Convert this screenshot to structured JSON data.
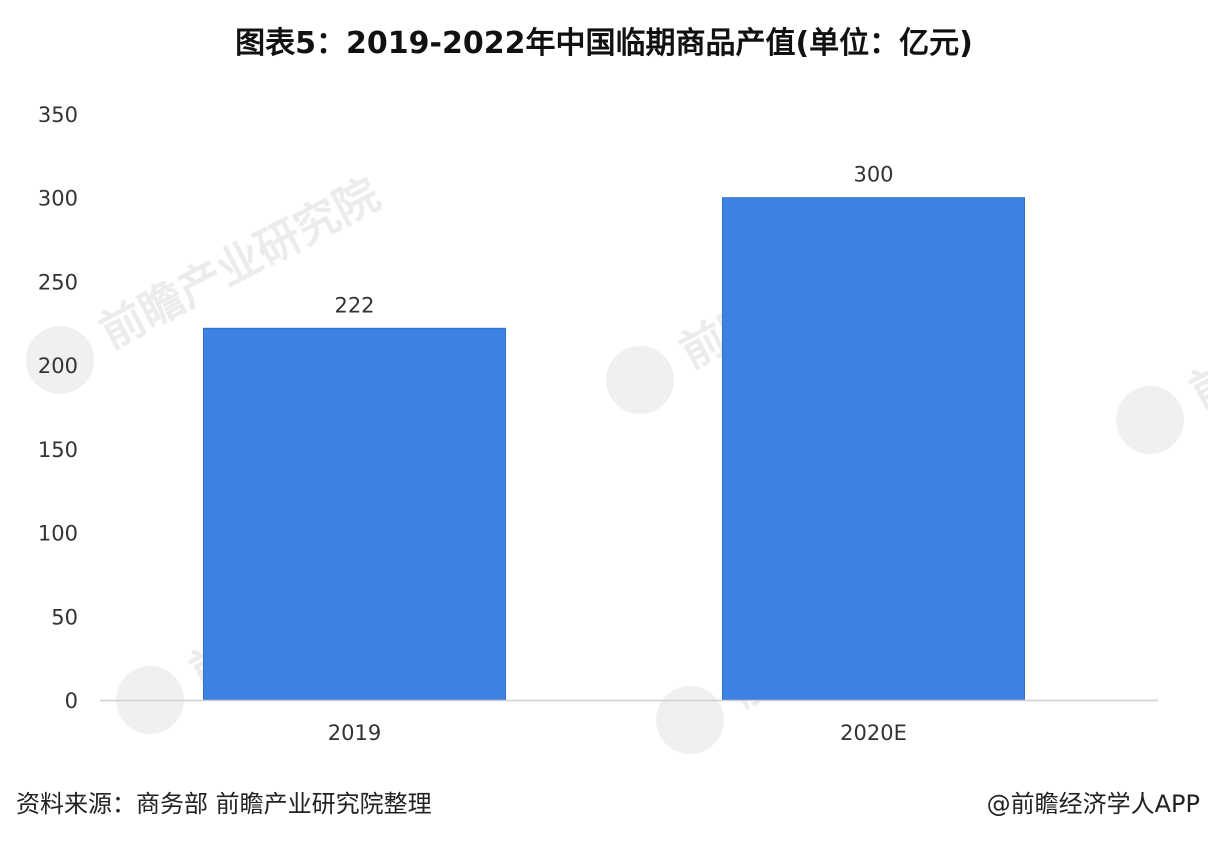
{
  "title": "图表5：2019-2022年中国临期商品产值(单位：亿元)",
  "source": "资料来源：商务部 前瞻产业研究院整理",
  "credit": "@前瞻经济学人APP",
  "watermark": "前瞻产业研究院",
  "colors": {
    "bar": "#3d82e0",
    "axis": "#cfcfcf",
    "text": "#333333"
  },
  "chart_data": {
    "type": "bar",
    "categories": [
      "2019",
      "2020E"
    ],
    "values": [
      222,
      300
    ],
    "data_labels": [
      "222",
      "300"
    ],
    "ylim": [
      0,
      350
    ],
    "yticks": [
      0,
      50,
      100,
      150,
      200,
      250,
      300,
      350
    ],
    "grid": false,
    "legend": "none"
  }
}
